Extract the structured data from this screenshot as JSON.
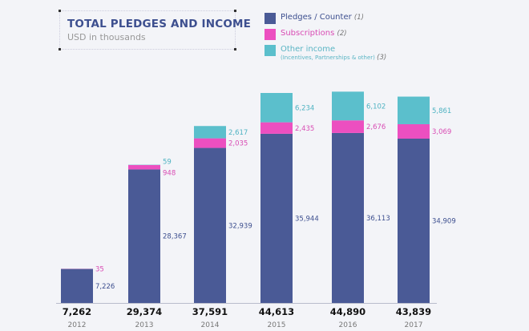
{
  "chart_data": {
    "type": "bar",
    "stacked": true,
    "title": "TOTAL PLEDGES AND INCOME",
    "subtitle": "USD in thousands",
    "categories": [
      "2012",
      "2013",
      "2014",
      "2015",
      "2016",
      "2017"
    ],
    "totals": [
      "7,262",
      "29,374",
      "37,591",
      "44,613",
      "44,890",
      "43,839"
    ],
    "series": [
      {
        "name": "Pledges / Counter",
        "note": "(1)",
        "color": "#4a5a96",
        "values": [
          7226,
          28367,
          32939,
          35944,
          36113,
          34909
        ],
        "labels": [
          "7,226",
          "28,367",
          "32,939",
          "35,944",
          "36,113",
          "34,909"
        ]
      },
      {
        "name": "Subscriptions",
        "note": "(2)",
        "color": "#ec4fc0",
        "values": [
          35,
          948,
          2035,
          2435,
          2676,
          3069
        ],
        "labels": [
          "35",
          "948",
          "2,035",
          "2,435",
          "2,676",
          "3,069"
        ]
      },
      {
        "name": "Other income",
        "detail": "(Incentives, Partnerships & other)",
        "note": "(3)",
        "color": "#5bbfcc",
        "values": [
          0,
          59,
          2617,
          6234,
          6102,
          5861
        ],
        "labels": [
          "",
          "59",
          "2,617",
          "6,234",
          "6,102",
          "5,861"
        ]
      }
    ],
    "grid": false,
    "legend": "top-right"
  }
}
